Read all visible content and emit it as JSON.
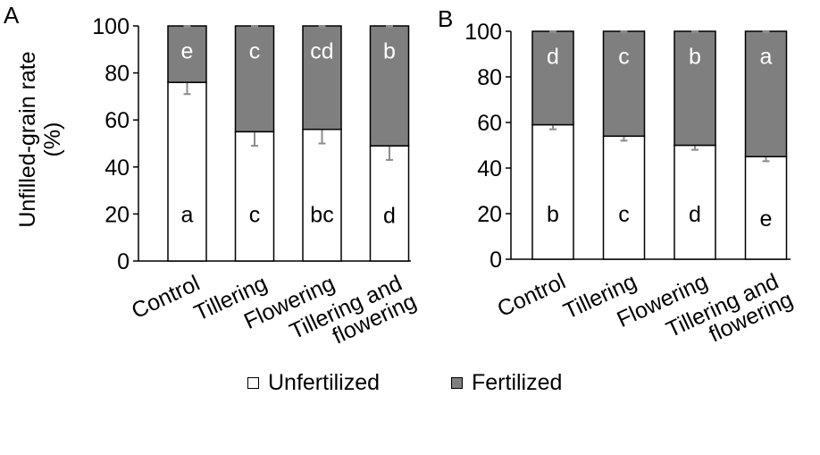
{
  "chart_data": [
    {
      "panel": "A",
      "type": "bar",
      "stacked": true,
      "categories": [
        "Control",
        "Tillering",
        "Flowering",
        "Tillering and flowering"
      ],
      "ylabel_lines": [
        "Unfilled-grain rate",
        "(%)"
      ],
      "ylim": [
        0,
        100
      ],
      "yticks": [
        0,
        20,
        40,
        60,
        80,
        100
      ],
      "series": [
        {
          "name": "Unfertilized",
          "color": "#ffffff",
          "values": [
            76,
            55,
            56,
            49
          ],
          "errors": [
            5,
            6,
            6,
            6
          ],
          "letters": [
            "a",
            "c",
            "bc",
            "d"
          ]
        },
        {
          "name": "Fertilized",
          "color": "#7f7f7f",
          "values": [
            24,
            45,
            44,
            51
          ],
          "errors": [
            0.5,
            0.5,
            0.5,
            0.5
          ],
          "letters": [
            "e",
            "c",
            "cd",
            "b"
          ]
        }
      ]
    },
    {
      "panel": "B",
      "type": "bar",
      "stacked": true,
      "categories": [
        "Control",
        "Tillering",
        "Flowering",
        "Tillering and flowering"
      ],
      "ylim": [
        0,
        100
      ],
      "yticks": [
        0,
        20,
        40,
        60,
        80,
        100
      ],
      "series": [
        {
          "name": "Unfertilized",
          "color": "#ffffff",
          "values": [
            59,
            54,
            50,
            45
          ],
          "errors": [
            2,
            2,
            2,
            2
          ],
          "letters": [
            "b",
            "c",
            "d",
            "e"
          ]
        },
        {
          "name": "Fertilized",
          "color": "#7f7f7f",
          "values": [
            41,
            46,
            50,
            55
          ],
          "errors": [
            0.5,
            0.5,
            0.5,
            0.5
          ],
          "letters": [
            "d",
            "c",
            "b",
            "a"
          ]
        }
      ]
    }
  ],
  "legend": [
    {
      "label": "Unfertilized",
      "color": "#ffffff"
    },
    {
      "label": "Fertilized",
      "color": "#7f7f7f"
    }
  ]
}
